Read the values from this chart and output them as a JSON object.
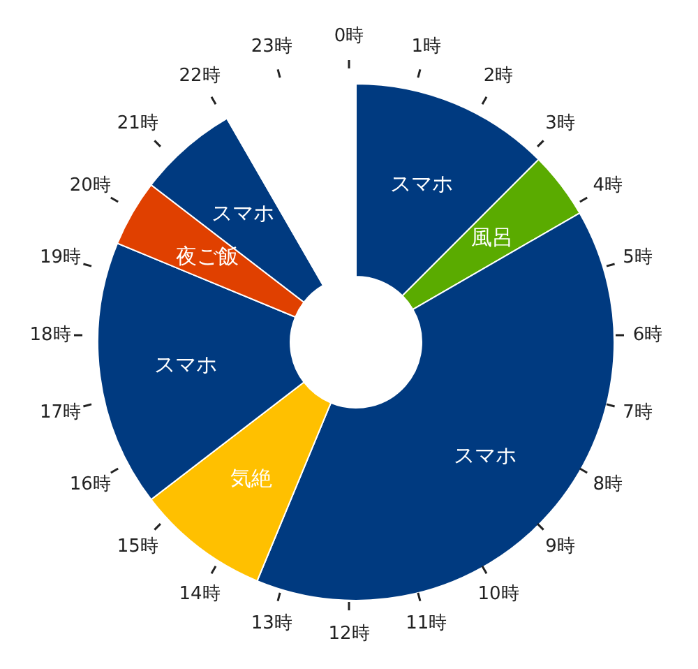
{
  "chart_data": {
    "type": "donut",
    "categories": [
      "スマホ",
      "風呂",
      "スマホ",
      "気絶",
      "スマホ",
      "夜ご飯",
      "スマホ",
      null
    ],
    "values": [
      12.5,
      4.17,
      39.58,
      8.33,
      16.67,
      4.17,
      6.25,
      8.33
    ],
    "colors": [
      "#003a80",
      "#5aab00",
      "#003a80",
      "#ffc000",
      "#003a80",
      "#e04000",
      "#003a80",
      "#ffffff"
    ],
    "annotations": [
      "0時",
      "1時",
      "2時",
      "3時",
      "4時",
      "5時",
      "6時",
      "7時",
      "8時",
      "9時",
      "10時",
      "11時",
      "12時",
      "13時",
      "14時",
      "15時",
      "16時",
      "17時",
      "18時",
      "19時",
      "20時",
      "21時",
      "22時",
      "23時"
    ],
    "legend": false
  }
}
